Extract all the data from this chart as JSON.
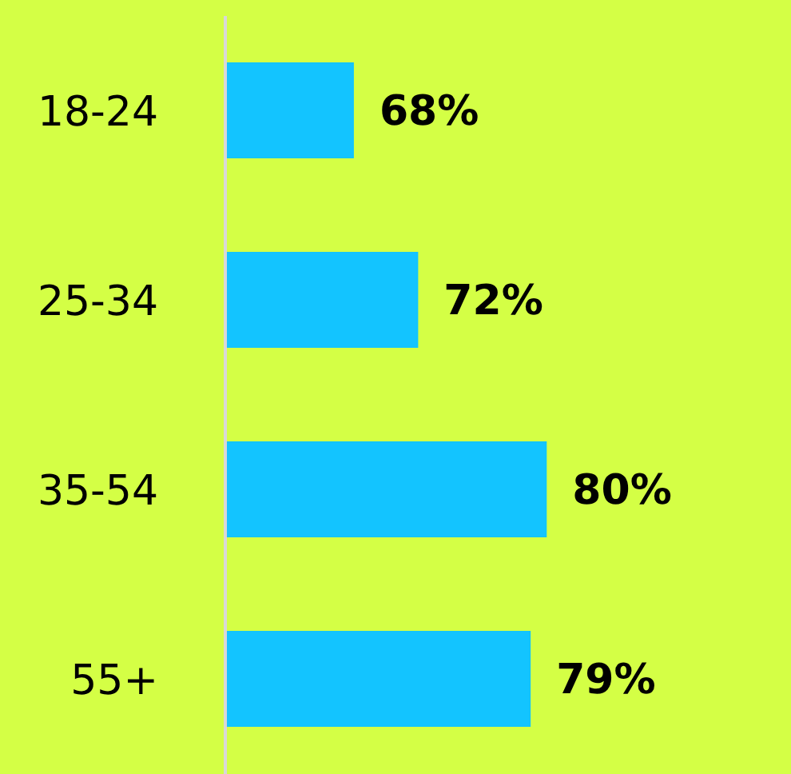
{
  "chart_data": {
    "type": "bar",
    "orientation": "horizontal",
    "categories": [
      "18-24",
      "25-34",
      "35-54",
      "55+"
    ],
    "values": [
      68,
      72,
      80,
      79
    ],
    "color": "#13c4ff",
    "value_labels": [
      "68%",
      "72%",
      "80%",
      "79%"
    ],
    "xlim": [
      60,
      95
    ],
    "tick_labels": "y",
    "grid": false,
    "legend": false
  }
}
